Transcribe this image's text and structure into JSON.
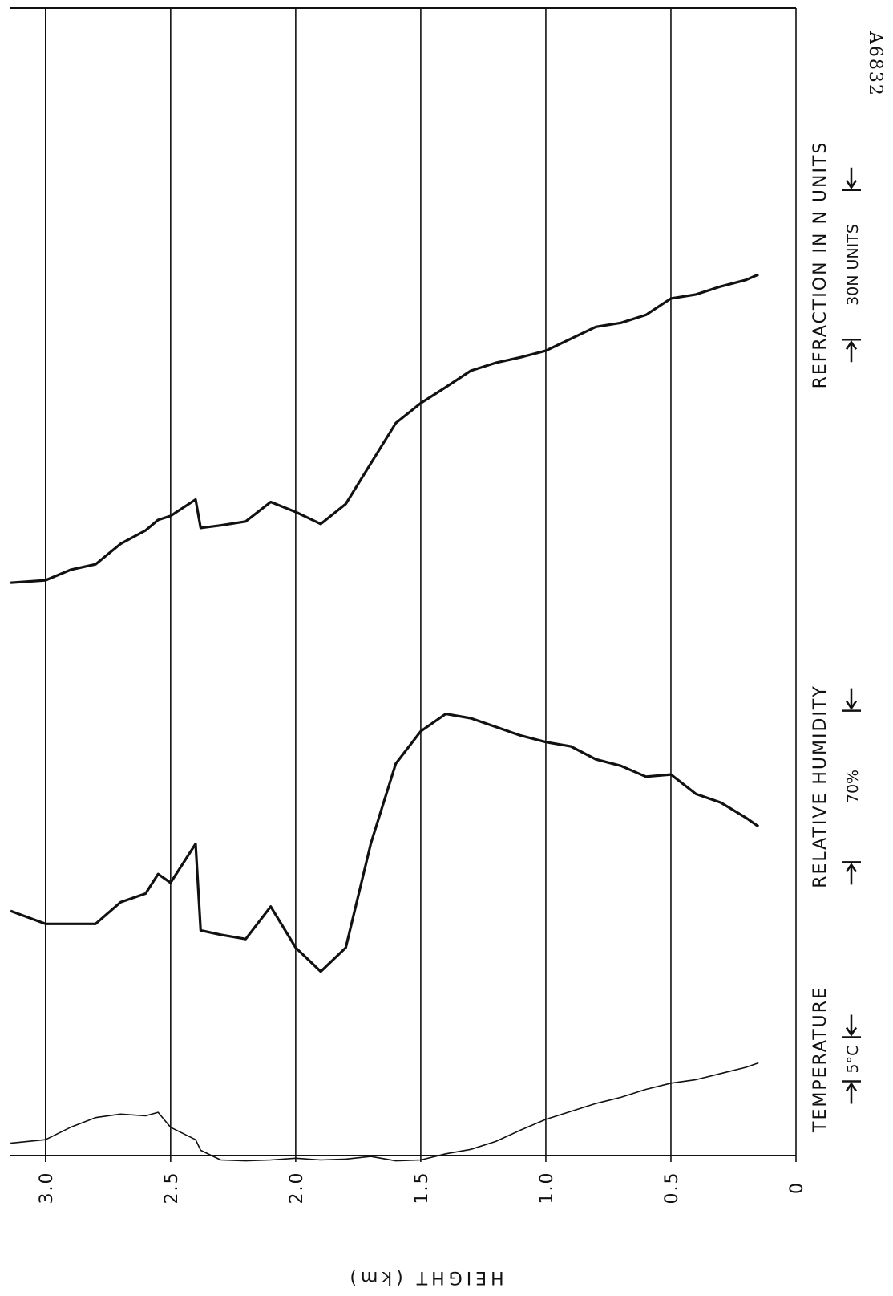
{
  "chart_data": {
    "type": "line",
    "annotation": "A6832",
    "x_label": "HEIGHT (km)",
    "xlim": [
      0,
      3.15
    ],
    "xticks": [
      {
        "value": 3,
        "label": "3.0"
      },
      2.5,
      {
        "value": 2,
        "label": "2.0"
      },
      1.5,
      {
        "value": 1,
        "label": "1.0"
      },
      0.5,
      0
    ],
    "grid": true,
    "x": [
      3.14,
      3.0,
      2.9,
      2.8,
      2.7,
      2.6,
      2.55,
      2.5,
      2.4,
      2.38,
      2.3,
      2.2,
      2.1,
      2.0,
      1.9,
      1.8,
      1.7,
      1.6,
      1.5,
      1.4,
      1.3,
      1.2,
      1.1,
      1.0,
      0.9,
      0.8,
      0.7,
      0.6,
      0.5,
      0.4,
      0.3,
      0.2,
      0.15
    ],
    "series": [
      {
        "name": "TEMPERATURE",
        "scale_label": "5°C",
        "scale": 5,
        "vlim": [
          0,
          130
        ],
        "color": "#111111",
        "width": 1.6,
        "values": [
          1.4,
          1.8,
          3.2,
          4.3,
          4.7,
          4.5,
          4.9,
          3.2,
          1.8,
          0.6,
          -0.5,
          -0.6,
          -0.5,
          -0.3,
          -0.5,
          -0.4,
          -0.1,
          -0.6,
          -0.5,
          0.2,
          0.7,
          1.6,
          2.9,
          4.1,
          5.0,
          5.9,
          6.6,
          7.5,
          8.2,
          8.6,
          9.3,
          10.0,
          10.5
        ]
      },
      {
        "name": "RELATIVE HUMIDITY",
        "scale_label": "70%",
        "scale": 70,
        "vlim": [
          0,
          530
        ],
        "color": "#111111",
        "width": 3.2,
        "values": [
          113,
          107,
          107,
          107,
          117,
          121,
          130,
          126,
          144,
          104,
          102,
          100,
          115,
          96,
          85,
          96,
          144,
          181,
          196,
          204,
          202,
          198,
          194,
          191,
          189,
          183,
          180,
          175,
          176,
          167,
          163,
          156,
          152
        ]
      },
      {
        "name": "REFRACTION IN N UNITS",
        "scale_label": "30N UNITS",
        "scale": 30,
        "vlim": [
          0,
          230
        ],
        "color": "#111111",
        "width": 3.2,
        "values": [
          114.8,
          115.3,
          117.4,
          118.5,
          122.6,
          125.3,
          127.4,
          128.2,
          131.5,
          125.8,
          126.3,
          127.1,
          131.0,
          129.0,
          126.6,
          130.6,
          138.7,
          146.8,
          150.8,
          154.0,
          157.3,
          158.9,
          160.0,
          161.3,
          163.7,
          166.1,
          166.9,
          168.5,
          171.8,
          172.6,
          174.2,
          175.5,
          176.6
        ]
      }
    ]
  }
}
